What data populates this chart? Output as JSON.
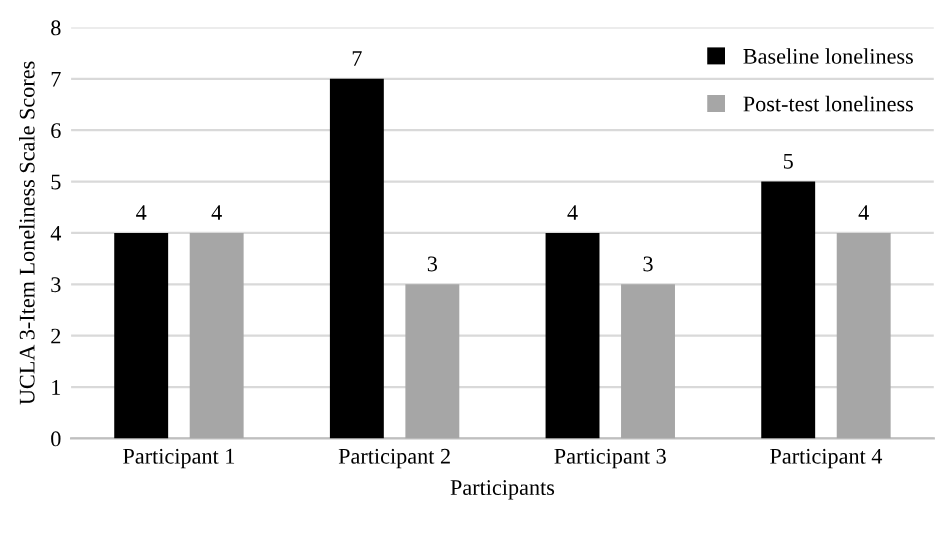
{
  "chart_data": {
    "type": "bar",
    "xlabel": "Participants",
    "ylabel": "UCLA 3-Item Loneliness Scale Scores",
    "categories": [
      "Participant 1",
      "Participant 2",
      "Participant 3",
      "Participant 4"
    ],
    "series": [
      {
        "name": "Baseline loneliness",
        "color": "#000000",
        "values": [
          4,
          7,
          4,
          5
        ]
      },
      {
        "name": "Post-test loneliness",
        "color": "#a6a6a6",
        "values": [
          4,
          3,
          3,
          4
        ]
      }
    ],
    "ylim": [
      0,
      8
    ],
    "yticks": [
      0,
      1,
      2,
      3,
      4,
      5,
      6,
      7,
      8
    ],
    "grid": "y",
    "legend": "top right",
    "data_labels": true
  }
}
